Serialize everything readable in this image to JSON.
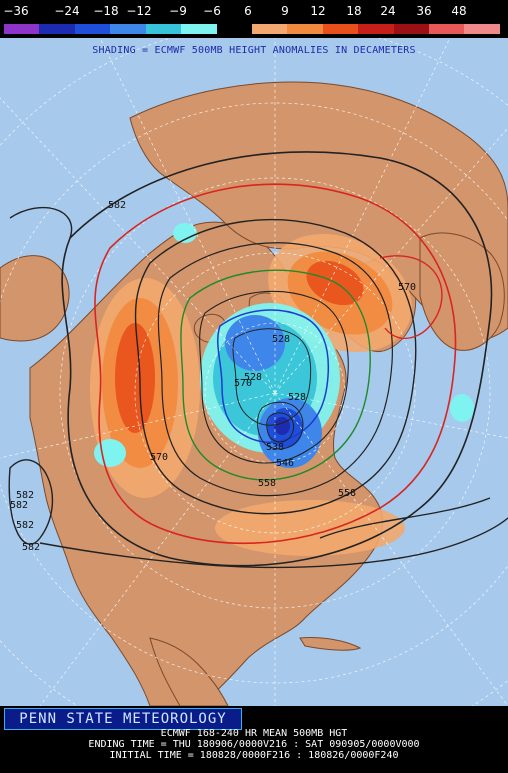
{
  "colorbar": {
    "labels": [
      "−36",
      "−24",
      "−18",
      "−12",
      "−9",
      "−6",
      "6",
      "9",
      "12",
      "18",
      "24",
      "36",
      "48"
    ],
    "colors": [
      "#8c35c8",
      "#1c2bb0",
      "#1f4fd8",
      "#3f86ea",
      "#37c4d8",
      "#7ff3f0",
      "#000000",
      "#f2a86e",
      "#f28a3d",
      "#e8501b",
      "#c61e18",
      "#9a1014",
      "#e85858",
      "#f08a8a"
    ]
  },
  "map": {
    "shading_caption": "SHADING = ECMWF 500MB HEIGHT ANOMALIES IN DECAMETERS",
    "contour_labels": [
      "582",
      "582",
      "582",
      "582",
      "570",
      "570",
      "570",
      "558",
      "546",
      "528",
      "528",
      "528",
      "538",
      "558",
      "582"
    ],
    "colors": {
      "ocean": "#a6c9ec",
      "land": "#d3956c",
      "graticule": "#ffffff",
      "contour": "#222222",
      "contour_red": "#d9251f",
      "contour_green": "#1f8a2a",
      "contour_blue": "#1d3bd0"
    }
  },
  "footer": {
    "branding": "PENN STATE METEOROLOGY",
    "line1": "ECMWF 168-240 HR MEAN 500MB HGT",
    "line2": "ENDING TIME = THU 180906/0000V216 : SAT 090905/0000V000",
    "line3": "INITIAL TIME = 180828/0000F216 : 180826/0000F240"
  }
}
